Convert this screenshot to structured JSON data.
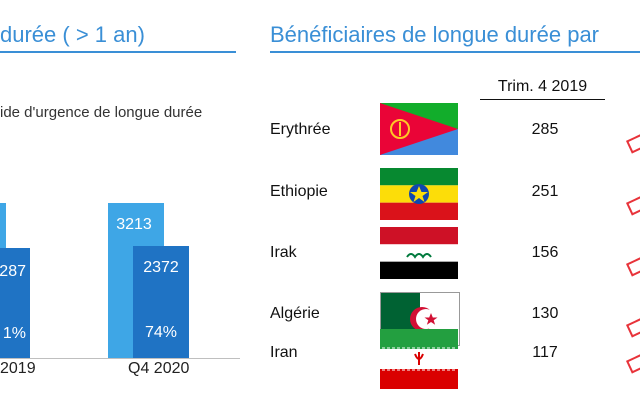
{
  "left_panel": {
    "heading": "durée ( > 1 an)",
    "subtitle": "ide d'urgence de longue durée",
    "bars": {
      "q_prev": {
        "quarter_label": "2019",
        "inner_value": "287",
        "inner_percent": "1%"
      },
      "q_2020": {
        "quarter_label": "Q4 2020",
        "outer_value": "3213",
        "inner_value": "2372",
        "inner_percent": "74%"
      }
    },
    "colors": {
      "outer_bar": "#3ea6e6",
      "inner_bar": "#1f73c4"
    }
  },
  "right_panel": {
    "heading": "Bénéficiaires de longue durée par",
    "column_header": "Trim. 4 2019",
    "rows": [
      {
        "country": "Erythrée",
        "value": "285",
        "flag_icon": "eritrea-flag-icon"
      },
      {
        "country": "Ethiopie",
        "value": "251",
        "flag_icon": "ethiopia-flag-icon"
      },
      {
        "country": "Irak",
        "value": "156",
        "flag_icon": "iraq-flag-icon"
      },
      {
        "country": "Algérie",
        "value": "130",
        "flag_icon": "algeria-flag-icon"
      },
      {
        "country": "Iran",
        "value": "117",
        "flag_icon": "iran-flag-icon"
      }
    ],
    "trend_icon": "trend-arrow-icon",
    "trend_color": "#e8333a"
  },
  "accent_color": "#3a8fd6"
}
